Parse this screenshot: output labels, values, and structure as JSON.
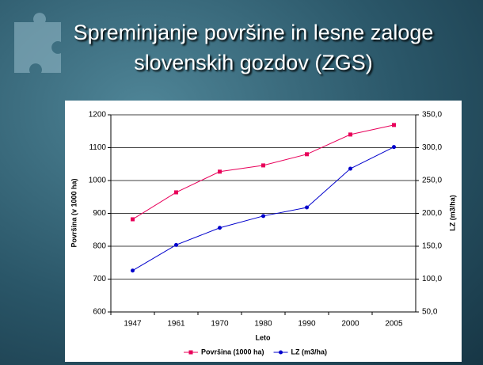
{
  "chart_data": {
    "type": "line",
    "title": [
      "Spreminjanje površine in lesne zaloge",
      "slovenskih gozdov (ZGS)"
    ],
    "x_label": "Leto",
    "y_label": "Površina (v 1000 ha)",
    "y2_label": "LZ (m3/ha)",
    "categories": [
      "1947",
      "1961",
      "1970",
      "1980",
      "1990",
      "2000",
      "2005"
    ],
    "series": [
      {
        "name": "Površina (1000 ha)",
        "color": "#e8005a",
        "marker": "square",
        "values": [
          882,
          964,
          1027,
          1046,
          1080,
          1140,
          1169
        ]
      },
      {
        "name": "LZ (m3/ha)",
        "color": "#0000cc",
        "marker": "circle",
        "axis": "y2",
        "values": [
          113,
          152,
          178,
          196,
          209,
          268,
          301
        ]
      }
    ],
    "ylim": [
      600,
      1200
    ],
    "yticks": [
      600,
      700,
      800,
      900,
      1000,
      1100,
      1200
    ],
    "y2lim": [
      50,
      350
    ],
    "y2ticks": [
      {
        "value": 50,
        "label": "50,0"
      },
      {
        "value": 100,
        "label": "100,0"
      },
      {
        "value": 150,
        "label": "150,0"
      },
      {
        "value": 200,
        "label": "200,0"
      },
      {
        "value": 250,
        "label": "250,0"
      },
      {
        "value": 300,
        "label": "300,0"
      },
      {
        "value": 350,
        "label": "350,0"
      }
    ],
    "grid": true,
    "legend": "bottom"
  }
}
